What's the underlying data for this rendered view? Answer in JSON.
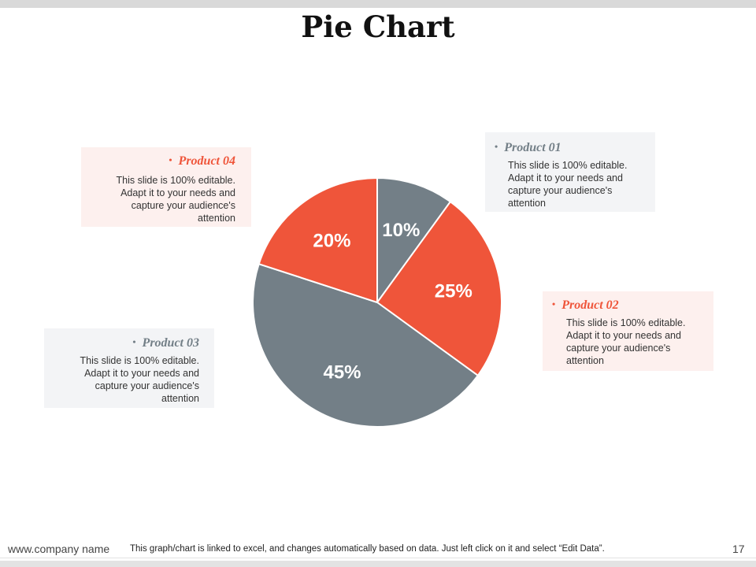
{
  "title": "Pie Chart",
  "colors": {
    "red": "#ef553a",
    "gray": "#737f87",
    "red_bg": "#fdf0ee",
    "gray_bg": "#f3f4f6"
  },
  "chart_data": {
    "type": "pie",
    "slices": [
      {
        "label": "Product 01",
        "value": 10,
        "display": "10%",
        "color": "#737f87"
      },
      {
        "label": "Product 02",
        "value": 25,
        "display": "25%",
        "color": "#ef553a"
      },
      {
        "label": "Product 03",
        "value": 45,
        "display": "45%",
        "color": "#737f87"
      },
      {
        "label": "Product 04",
        "value": 20,
        "display": "20%",
        "color": "#ef553a"
      }
    ],
    "start_angle": "12 o'clock",
    "direction": "clockwise"
  },
  "callouts": {
    "product01": {
      "heading": "Product 01",
      "body": "This slide is 100% editable. Adapt it to your needs and capture your audience's attention"
    },
    "product02": {
      "heading": "Product 02",
      "body": "This slide is 100% editable. Adapt it to your needs and capture your audience's attention"
    },
    "product03": {
      "heading": "Product 03",
      "body": "This slide is 100% editable. Adapt it to your needs and capture your audience's attention"
    },
    "product04": {
      "heading": "Product 04",
      "body": "This slide is 100% editable. Adapt it to your needs and capture your audience's attention"
    }
  },
  "footer": {
    "url": "www.company name",
    "note": "This graph/chart is linked to excel, and changes automatically based on data. Just left click on it and select “Edit Data”.",
    "page": "17"
  },
  "bullet": "•"
}
